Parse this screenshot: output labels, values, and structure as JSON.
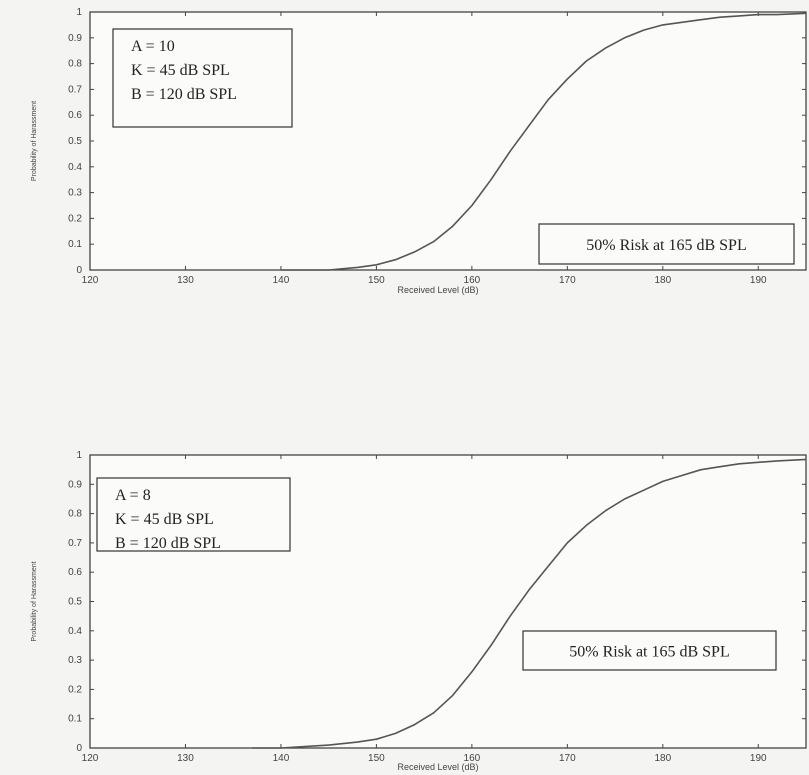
{
  "chart_data": [
    {
      "type": "line",
      "title": "",
      "xlabel": "Received Level (dB)",
      "ylabel": "Probability of Harassment",
      "xlim": [
        120,
        195
      ],
      "ylim": [
        0,
        1
      ],
      "x_ticks": [
        "120",
        "130",
        "140",
        "150",
        "160",
        "170",
        "180",
        "190"
      ],
      "y_ticks": [
        "0",
        "0.1",
        "0.2",
        "0.3",
        "0.4",
        "0.5",
        "0.6",
        "0.7",
        "0.8",
        "0.9",
        "1"
      ],
      "params_box": [
        "A = 10",
        "K = 45 dB SPL",
        "B = 120 dB SPL"
      ],
      "risk_box": "50% Risk at 165 dB SPL",
      "series": [
        {
          "x": [
            140,
            145,
            148,
            150,
            152,
            154,
            156,
            158,
            160,
            162,
            164,
            166,
            168,
            170,
            172,
            174,
            176,
            178,
            180,
            182,
            184,
            186,
            188,
            190,
            192,
            195
          ],
          "y": [
            0.0,
            0.0,
            0.01,
            0.02,
            0.04,
            0.07,
            0.11,
            0.17,
            0.25,
            0.35,
            0.46,
            0.56,
            0.66,
            0.74,
            0.81,
            0.86,
            0.9,
            0.93,
            0.95,
            0.96,
            0.97,
            0.98,
            0.985,
            0.99,
            0.99,
            0.995
          ]
        }
      ],
      "colors": {
        "line": "#555555",
        "frame": "#444444"
      },
      "grid": false
    },
    {
      "type": "line",
      "title": "",
      "xlabel": "Received Level (dB)",
      "ylabel": "Probability of Harassment",
      "xlim": [
        120,
        195
      ],
      "ylim": [
        0,
        1
      ],
      "x_ticks": [
        "120",
        "130",
        "140",
        "150",
        "160",
        "170",
        "180",
        "190"
      ],
      "y_ticks": [
        "0",
        "0.1",
        "0.2",
        "0.3",
        "0.4",
        "0.5",
        "0.6",
        "0.7",
        "0.8",
        "0.9",
        "1"
      ],
      "params_box": [
        "A = 8",
        "K = 45 dB SPL",
        "B = 120 dB SPL"
      ],
      "risk_box": "50% Risk at 165 dB SPL",
      "series": [
        {
          "x": [
            137,
            140,
            145,
            148,
            150,
            152,
            154,
            156,
            158,
            160,
            162,
            164,
            166,
            168,
            170,
            172,
            174,
            176,
            178,
            180,
            182,
            184,
            186,
            188,
            190,
            192,
            195
          ],
          "y": [
            0.0,
            0.0,
            0.01,
            0.02,
            0.03,
            0.05,
            0.08,
            0.12,
            0.18,
            0.26,
            0.35,
            0.45,
            0.54,
            0.62,
            0.7,
            0.76,
            0.81,
            0.85,
            0.88,
            0.91,
            0.93,
            0.95,
            0.96,
            0.97,
            0.975,
            0.98,
            0.985
          ]
        }
      ],
      "colors": {
        "line": "#555555",
        "frame": "#444444"
      },
      "grid": false
    }
  ]
}
